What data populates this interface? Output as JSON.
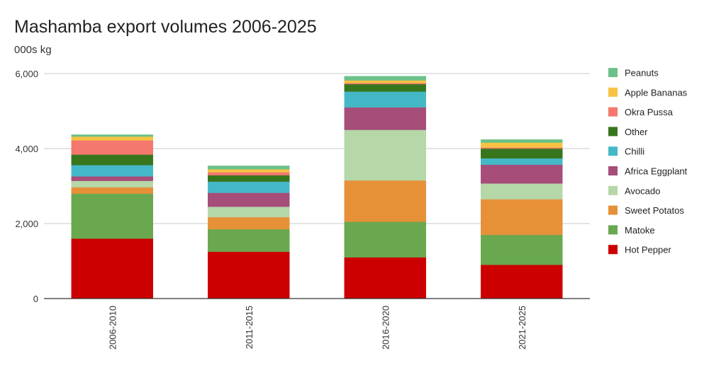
{
  "chart_data": {
    "type": "bar",
    "stacked": true,
    "title": "Mashamba export volumes 2006-2025",
    "subtitle": "000s kg",
    "categories": [
      "2006-2010",
      "2011-2015",
      "2016-2020",
      "2021-2025"
    ],
    "ylim": [
      0,
      6000
    ],
    "yticks": [
      0,
      2000,
      4000,
      6000
    ],
    "ytick_labels": [
      "0",
      "2,000",
      "4,000",
      "6,000"
    ],
    "grid": true,
    "legend_position": "right",
    "series": [
      {
        "name": "Hot Pepper",
        "color": "#cc0000",
        "values": [
          1600,
          1250,
          1100,
          900
        ]
      },
      {
        "name": "Matoke",
        "color": "#6aa84f",
        "values": [
          1200,
          600,
          950,
          800
        ]
      },
      {
        "name": "Sweet Potatos",
        "color": "#e69138",
        "values": [
          170,
          320,
          1100,
          950
        ]
      },
      {
        "name": "Avocado",
        "color": "#b6d7a8",
        "values": [
          170,
          280,
          1350,
          420
        ]
      },
      {
        "name": "Africa Eggplant",
        "color": "#a64d79",
        "values": [
          120,
          370,
          600,
          500
        ]
      },
      {
        "name": "Chilli",
        "color": "#45b8c8",
        "values": [
          300,
          300,
          420,
          170
        ]
      },
      {
        "name": "Other",
        "color": "#38761d",
        "values": [
          280,
          170,
          200,
          260
        ]
      },
      {
        "name": "Okra Pussa",
        "color": "#f4786e",
        "values": [
          380,
          80,
          30,
          30
        ]
      },
      {
        "name": "Apple Bananas",
        "color": "#f6c342",
        "values": [
          100,
          80,
          70,
          130
        ]
      },
      {
        "name": "Peanuts",
        "color": "#6cc18a",
        "values": [
          50,
          90,
          110,
          80
        ]
      }
    ]
  }
}
